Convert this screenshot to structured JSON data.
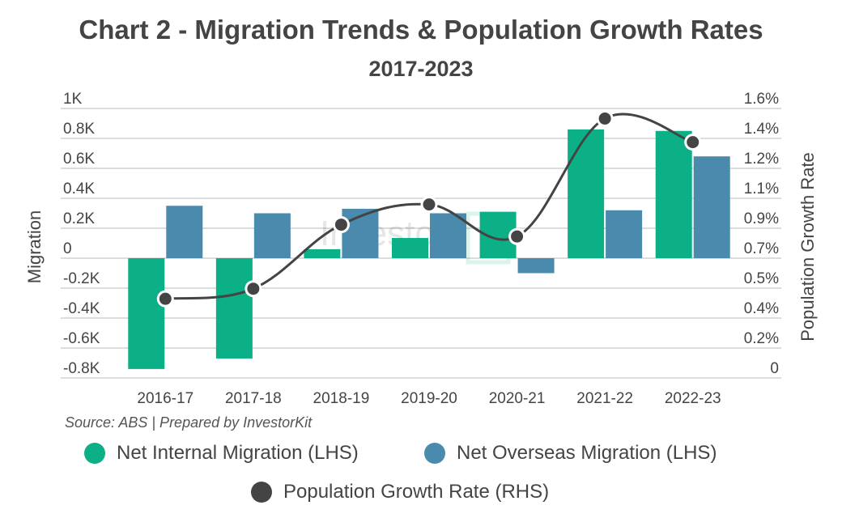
{
  "chart_data": {
    "type": "bar+line",
    "title": "Chart 2 - Migration Trends & Population Growth Rates",
    "subtitle": "2017-2023",
    "categories": [
      "2016-17",
      "2017-18",
      "2018-19",
      "2019-20",
      "2020-21",
      "2021-22",
      "2022-23"
    ],
    "ylabel_left": "Migration",
    "ylabel_right": "Population Growth Rate",
    "ylim_left": [
      -0.8,
      1.0
    ],
    "left_ticks": [
      "1K",
      "0.8K",
      "0.6K",
      "0.4K",
      "0.2K",
      "0",
      "-0.2K",
      "-0.4K",
      "-0.6K",
      "-0.8K"
    ],
    "ylim_right": [
      0,
      1.6
    ],
    "right_ticks": [
      "1.6%",
      "1.4%",
      "1.2%",
      "1.1%",
      "0.9%",
      "0.7%",
      "0.5%",
      "0.4%",
      "0.2%",
      "0"
    ],
    "grid": true,
    "legend_position": "bottom",
    "series": [
      {
        "name": "Net Internal Migration (LHS)",
        "type": "bar",
        "axis": "left",
        "color": "#0bb087",
        "values": [
          -0.74,
          -0.67,
          0.06,
          0.135,
          0.31,
          0.86,
          0.85
        ]
      },
      {
        "name": "Net Overseas Migration (LHS)",
        "type": "bar",
        "axis": "left",
        "color": "#4a8aad",
        "values": [
          0.35,
          0.3,
          0.33,
          0.3,
          -0.1,
          0.32,
          0.68
        ]
      },
      {
        "name": "Population Growth Rate (RHS)",
        "type": "line",
        "axis": "right",
        "color": "#444444",
        "values": [
          0.47,
          0.53,
          0.91,
          1.03,
          0.84,
          1.54,
          1.4
        ]
      }
    ],
    "source": "Source: ABS | Prepared by InvestorKit",
    "watermark": "Investor"
  }
}
